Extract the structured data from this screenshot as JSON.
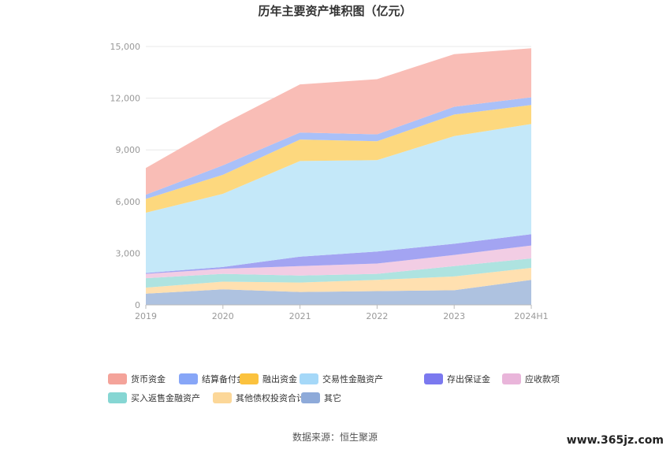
{
  "chart_data": {
    "type": "area",
    "stacked": true,
    "title": "历年主要资产堆积图（亿元）",
    "categories": [
      "2019",
      "2020",
      "2021",
      "2022",
      "2023",
      "2024H1"
    ],
    "y_ticks": [
      "0",
      "3,000",
      "6,000",
      "9,000",
      "12,000",
      "15,000"
    ],
    "ylim": [
      0,
      15000
    ],
    "grid": true,
    "legend_position": "bottom",
    "series": [
      {
        "name": "其它",
        "color": "#aec2e0",
        "values": [
          650,
          900,
          750,
          800,
          850,
          1450
        ]
      },
      {
        "name": "其他债权投资合计",
        "color": "#ffe0b0",
        "values": [
          350,
          450,
          550,
          650,
          800,
          700
        ]
      },
      {
        "name": "买入返售金融资产",
        "color": "#aee3e0",
        "values": [
          550,
          450,
          400,
          350,
          600,
          550
        ]
      },
      {
        "name": "应收款项",
        "color": "#f2cde4",
        "values": [
          250,
          300,
          550,
          600,
          650,
          750
        ]
      },
      {
        "name": "存出保证金",
        "color": "#a3a4f2",
        "values": [
          50,
          100,
          550,
          700,
          650,
          650
        ]
      },
      {
        "name": "交易性金融资产",
        "color": "#c4e8f9",
        "values": [
          3500,
          4250,
          5550,
          5300,
          6250,
          6400
        ]
      },
      {
        "name": "融出资金",
        "color": "#fdd87e",
        "values": [
          800,
          1100,
          1250,
          1100,
          1250,
          1100
        ]
      },
      {
        "name": "结算备付金",
        "color": "#a9c0f8",
        "values": [
          250,
          550,
          400,
          400,
          450,
          450
        ]
      },
      {
        "name": "货币资金",
        "color": "#f9bdb6",
        "values": [
          1550,
          2400,
          2800,
          3200,
          3050,
          2850
        ]
      }
    ],
    "legend_order": [
      "货币资金",
      "结算备付金",
      "融出资金",
      "交易性金融资产",
      "存出保证金",
      "应收款项",
      "买入返售金融资产",
      "其他债权投资合计",
      "其它"
    ],
    "legend_colors": {
      "货币资金": "#f4a39a",
      "结算备付金": "#87a6f7",
      "融出资金": "#fbc23e",
      "交易性金融资产": "#a5d8f8",
      "存出保证金": "#7b79ef",
      "应收款项": "#e9b5da",
      "买入返售金融资产": "#86d6d3",
      "其他债权投资合计": "#fcd798",
      "其它": "#8eaad9"
    }
  },
  "source_text": "数据来源：恒生聚源",
  "watermark_text": "www.365jz.com"
}
